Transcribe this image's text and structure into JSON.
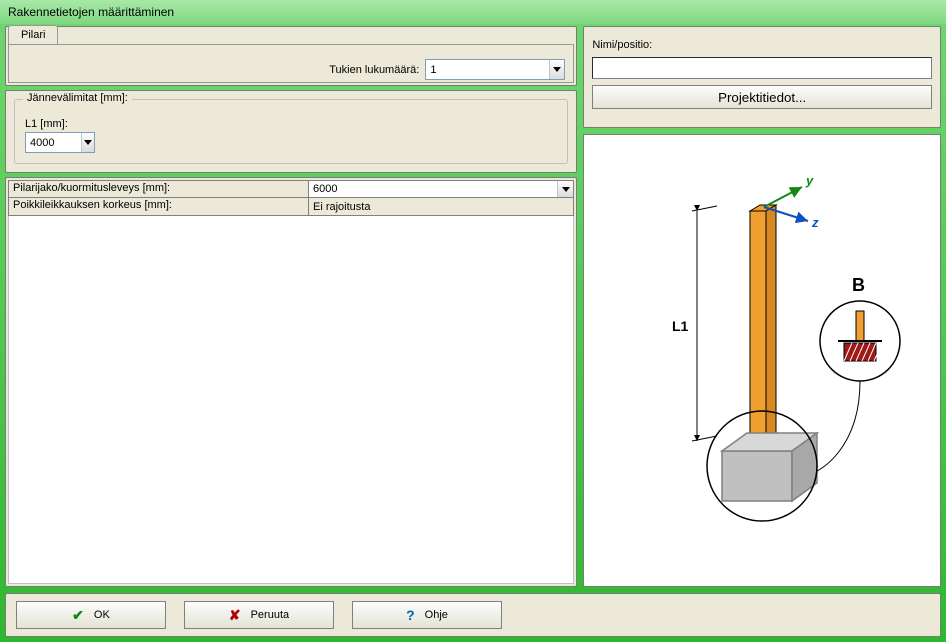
{
  "window": {
    "title": "Rakennetietojen määrittäminen"
  },
  "tabs": {
    "pilari": "Pilari"
  },
  "supports": {
    "label": "Tukien lukumäärä:",
    "value": "1"
  },
  "span": {
    "group_title": "Jännevälimitat [mm]:",
    "l1_label": "L1 [mm]:",
    "l1_value": "4000"
  },
  "props": {
    "rows": [
      {
        "label": "Pilarijako/kuormitusleveys [mm]:",
        "value": "6000",
        "drop": true
      },
      {
        "label": "Poikkileikkauksen korkeus [mm]:",
        "value": "Ei rajoitusta",
        "drop": false
      }
    ]
  },
  "right": {
    "nimi_label": "Nimi/positio:",
    "nimi_value": "",
    "project_button": "Projektitiedot..."
  },
  "diagram": {
    "L1_label": "L1",
    "B_label": "B",
    "y_label": "y",
    "z_label": "z",
    "column_color": "#f0a030",
    "column_stroke": "#000000",
    "base_fill": "#c0c0c0",
    "base_stroke": "#808080",
    "circle_stroke": "#000000",
    "y_color": "#108a10",
    "z_color": "#1050c0",
    "hatched_fill": "#a01818"
  },
  "buttons": {
    "ok": "OK",
    "cancel": "Peruuta",
    "help": "Ohje"
  }
}
